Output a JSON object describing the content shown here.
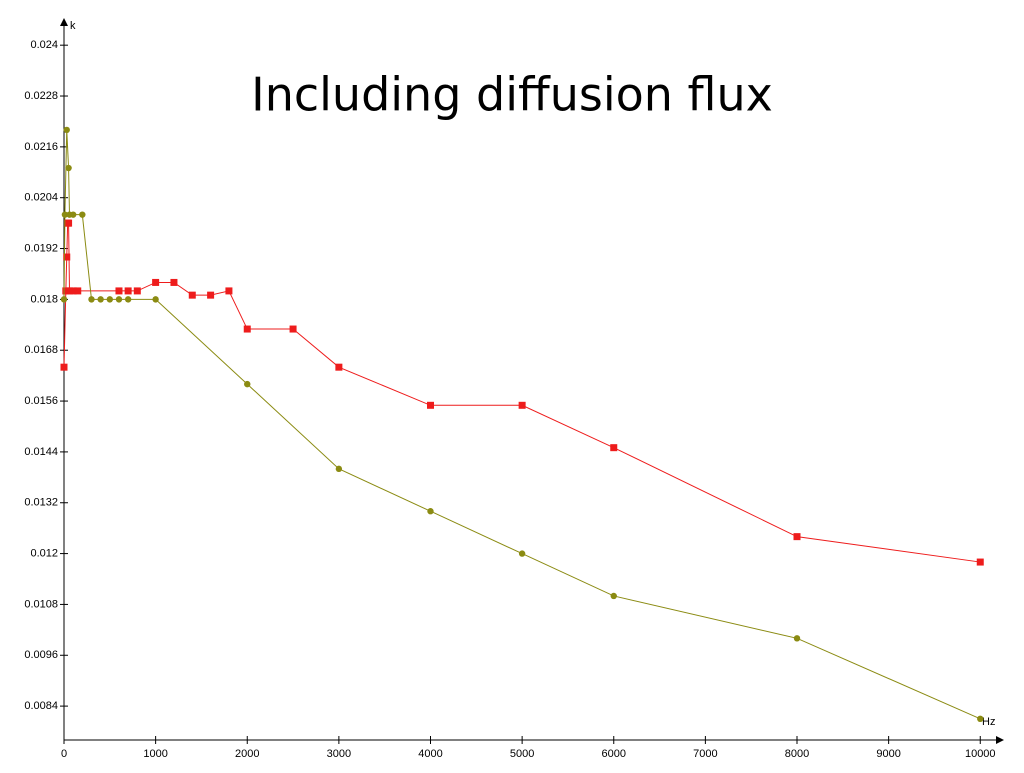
{
  "chart_data": {
    "type": "line",
    "title": "Including diffusion flux",
    "x_label": "Hz",
    "y_label": "k",
    "xlim": [
      0,
      10150
    ],
    "ylim": [
      0.0076,
      0.0245
    ],
    "xticks": [
      0,
      1000,
      2000,
      3000,
      4000,
      5000,
      6000,
      7000,
      8000,
      9000,
      10000
    ],
    "yticks": [
      0.024,
      0.0228,
      0.0216,
      0.0204,
      0.0192,
      0.018,
      0.0168,
      0.0156,
      0.0144,
      0.0132,
      0.012,
      0.0108,
      0.0096,
      0.0084
    ],
    "series": [
      {
        "color": "#ee1c1c",
        "marker": "square",
        "x": [
          0,
          20,
          30,
          40,
          50,
          60,
          100,
          150,
          600,
          700,
          800,
          1000,
          1200,
          1400,
          1600,
          1800,
          2000,
          2500,
          3000,
          4000,
          5000,
          6000,
          8000,
          10000
        ],
        "values": [
          0.0164,
          0.0182,
          0.019,
          0.0198,
          0.0198,
          0.0182,
          0.0182,
          0.0182,
          0.0182,
          0.0182,
          0.0182,
          0.0184,
          0.0184,
          0.0181,
          0.0181,
          0.0182,
          0.0173,
          0.0173,
          0.0164,
          0.0155,
          0.0155,
          0.0145,
          0.0124,
          0.0118
        ]
      },
      {
        "color": "#8b8b12",
        "marker": "circle",
        "x": [
          0,
          10,
          30,
          50,
          60,
          100,
          200,
          300,
          400,
          500,
          600,
          700,
          1000,
          2000,
          3000,
          4000,
          5000,
          6000,
          8000,
          10000
        ],
        "values": [
          0.018,
          0.02,
          0.022,
          0.0211,
          0.02,
          0.02,
          0.02,
          0.018,
          0.018,
          0.018,
          0.018,
          0.018,
          0.018,
          0.016,
          0.014,
          0.013,
          0.012,
          0.011,
          0.01,
          0.0081
        ]
      }
    ]
  }
}
